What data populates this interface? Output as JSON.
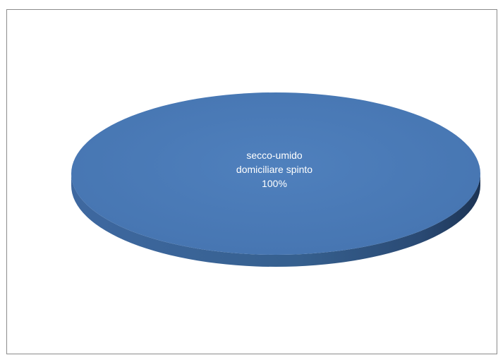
{
  "chart_data": {
    "type": "pie",
    "title": "",
    "legend": "none",
    "colors": {
      "top": "#4b7bb7",
      "side_light": "#3f6aa0",
      "side_dark": "#1f3a5f"
    },
    "slices": [
      {
        "category": "secco-umido domiciliare spinto",
        "label_lines": [
          "secco-umido",
          "domiciliare spinto"
        ],
        "value": 100,
        "percent_label": "100%",
        "color": "#4b7bb7"
      }
    ]
  }
}
